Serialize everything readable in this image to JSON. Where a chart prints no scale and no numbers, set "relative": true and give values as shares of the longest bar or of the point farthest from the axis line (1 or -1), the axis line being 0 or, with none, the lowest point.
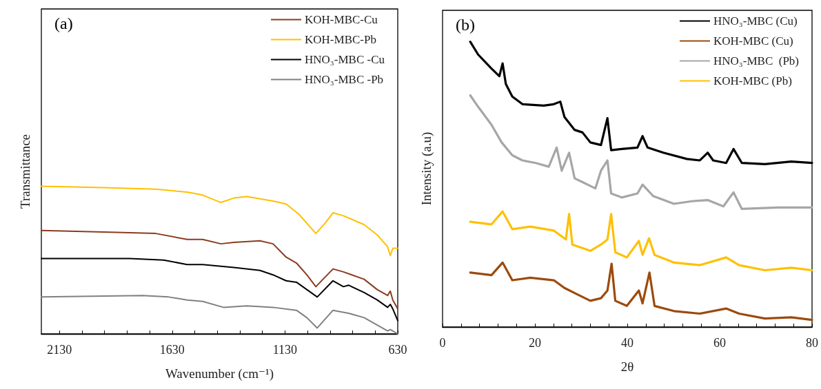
{
  "chart_data": [
    {
      "type": "line",
      "title": "(a)",
      "xlabel": "Wavenumber (cm⁻¹)",
      "ylabel": "Transmittance",
      "relative": true,
      "legend": "top right",
      "marker": "none",
      "line_style": "solid",
      "xlim": [
        2210,
        630
      ],
      "xticks": [
        2130,
        {
          "value": 2030,
          "label": null
        },
        {
          "value": 1930,
          "label": null
        },
        {
          "value": 1830,
          "label": null
        },
        {
          "value": 1730,
          "label": null
        },
        1630,
        {
          "value": 1530,
          "label": null
        },
        {
          "value": 1430,
          "label": null
        },
        {
          "value": 1330,
          "label": null
        },
        {
          "value": 1230,
          "label": null
        },
        1130,
        {
          "value": 1030,
          "label": null
        },
        {
          "value": 930,
          "label": null
        },
        {
          "value": 830,
          "label": null
        },
        {
          "value": 730,
          "label": null
        },
        630
      ],
      "series": [
        {
          "name": "KOH-MBC-Cu",
          "color": "#8b3a1e",
          "x": [
            2210,
            1934,
            1703,
            1564,
            1495,
            1414,
            1356,
            1241,
            1183,
            1125,
            1079,
            1033,
            993,
            917,
            871,
            779,
            721,
            675,
            663,
            652,
            630
          ],
          "values": [
            0.7,
            0.69,
            0.68,
            0.64,
            0.64,
            0.61,
            0.62,
            0.63,
            0.61,
            0.52,
            0.48,
            0.4,
            0.32,
            0.44,
            0.42,
            0.37,
            0.3,
            0.26,
            0.29,
            0.23,
            0.17
          ]
        },
        {
          "name": "KOH-MBC-Pb",
          "color": "#ffc000",
          "x": [
            2210,
            1934,
            1703,
            1564,
            1495,
            1414,
            1356,
            1299,
            1183,
            1125,
            1068,
            993,
            952,
            917,
            871,
            779,
            721,
            675,
            663,
            652,
            630
          ],
          "values": [
            1.0,
            0.99,
            0.98,
            0.96,
            0.94,
            0.89,
            0.92,
            0.93,
            0.9,
            0.88,
            0.81,
            0.68,
            0.75,
            0.82,
            0.8,
            0.74,
            0.67,
            0.59,
            0.53,
            0.58,
            0.58
          ]
        },
        {
          "name": "HNO₃-MBC -Cu",
          "color": "#000000",
          "x": [
            2210,
            1818,
            1668,
            1564,
            1495,
            1356,
            1241,
            1183,
            1125,
            1079,
            1033,
            987,
            917,
            871,
            848,
            779,
            721,
            675,
            663,
            652,
            630
          ],
          "values": [
            0.51,
            0.51,
            0.5,
            0.47,
            0.47,
            0.45,
            0.43,
            0.4,
            0.36,
            0.35,
            0.3,
            0.25,
            0.36,
            0.32,
            0.33,
            0.28,
            0.23,
            0.18,
            0.2,
            0.17,
            0.09
          ]
        },
        {
          "name": "HNO₃-MBC -Pb",
          "color": "#808080",
          "x": [
            2210,
            1761,
            1645,
            1564,
            1495,
            1403,
            1299,
            1183,
            1079,
            1033,
            987,
            917,
            848,
            779,
            721,
            675,
            663,
            630
          ],
          "values": [
            0.25,
            0.26,
            0.25,
            0.23,
            0.22,
            0.18,
            0.19,
            0.18,
            0.16,
            0.11,
            0.04,
            0.16,
            0.14,
            0.11,
            0.06,
            0.02,
            0.03,
            0.0
          ]
        }
      ]
    },
    {
      "type": "line",
      "title": "(b)",
      "xlabel": "2θ",
      "ylabel": "Intensity (a.u)",
      "relative": true,
      "legend": "top right",
      "marker": "none",
      "line_style": "solid",
      "xlim": [
        0,
        80
      ],
      "xticks": [
        0,
        {
          "value": 4,
          "label": null
        },
        {
          "value": 8,
          "label": null
        },
        {
          "value": 12,
          "label": null
        },
        {
          "value": 16,
          "label": null
        },
        20,
        {
          "value": 24,
          "label": null
        },
        {
          "value": 28,
          "label": null
        },
        {
          "value": 32,
          "label": null
        },
        {
          "value": 36,
          "label": null
        },
        40,
        {
          "value": 44,
          "label": null
        },
        {
          "value": 48,
          "label": null
        },
        {
          "value": 52,
          "label": null
        },
        {
          "value": 56,
          "label": null
        },
        60,
        {
          "value": 64,
          "label": null
        },
        {
          "value": 68,
          "label": null
        },
        {
          "value": 72,
          "label": null
        },
        {
          "value": 76,
          "label": null
        },
        80
      ],
      "series": [
        {
          "name": "HNO₃-MBC (Cu)",
          "color": "#000000",
          "x": [
            6.0,
            7.7,
            10.6,
            12.3,
            13.0,
            13.7,
            15.1,
            17.3,
            21.9,
            24.1,
            25.5,
            26.4,
            28.6,
            30.3,
            32.0,
            34.3,
            35.7,
            36.5,
            38.8,
            42.2,
            43.3,
            44.4,
            47.8,
            52.9,
            55.7,
            57.4,
            58.6,
            61.4,
            63.0,
            64.8,
            69.8,
            75.5,
            80.0
          ],
          "values": [
            1.0,
            0.955,
            0.906,
            0.879,
            0.924,
            0.852,
            0.808,
            0.781,
            0.776,
            0.781,
            0.79,
            0.736,
            0.691,
            0.682,
            0.647,
            0.638,
            0.732,
            0.62,
            0.624,
            0.629,
            0.669,
            0.629,
            0.611,
            0.589,
            0.584,
            0.611,
            0.584,
            0.575,
            0.624,
            0.575,
            0.571,
            0.58,
            0.575
          ]
        },
        {
          "name": "KOH-MBC (Cu)",
          "color": "#9c4a0c",
          "x": [
            6.0,
            10.6,
            13.0,
            15.1,
            19.0,
            24.1,
            26.4,
            28.6,
            32.0,
            34.3,
            35.7,
            36.6,
            37.4,
            39.9,
            42.5,
            43.3,
            44.8,
            45.9,
            50.1,
            55.7,
            61.4,
            64.2,
            69.8,
            75.5,
            80.0
          ],
          "values": [
            0.191,
            0.182,
            0.226,
            0.164,
            0.173,
            0.164,
            0.137,
            0.119,
            0.092,
            0.101,
            0.128,
            0.222,
            0.092,
            0.074,
            0.128,
            0.083,
            0.191,
            0.074,
            0.056,
            0.047,
            0.065,
            0.047,
            0.03,
            0.034,
            0.025
          ]
        },
        {
          "name": "HNO₃-MBC  (Pb)",
          "color": "#a6a6a6",
          "x": [
            6.0,
            7.7,
            10.6,
            12.8,
            15.1,
            17.3,
            20.2,
            23.0,
            24.7,
            25.8,
            27.4,
            28.6,
            30.3,
            33.1,
            34.3,
            35.7,
            36.5,
            38.8,
            42.2,
            43.3,
            45.6,
            50.1,
            54.0,
            57.4,
            60.8,
            63.0,
            64.8,
            72.7,
            80.0
          ],
          "values": [
            0.812,
            0.772,
            0.709,
            0.647,
            0.602,
            0.584,
            0.575,
            0.562,
            0.629,
            0.548,
            0.611,
            0.521,
            0.508,
            0.486,
            0.548,
            0.584,
            0.468,
            0.454,
            0.468,
            0.499,
            0.459,
            0.432,
            0.441,
            0.445,
            0.423,
            0.472,
            0.414,
            0.419,
            0.419
          ]
        },
        {
          "name": "KOH-MBC (Pb)",
          "color": "#ffc000",
          "x": [
            6.0,
            10.6,
            13.0,
            15.1,
            19.0,
            24.1,
            26.7,
            27.4,
            28.1,
            32.0,
            34.3,
            35.7,
            36.5,
            37.4,
            39.9,
            42.5,
            43.3,
            44.7,
            45.9,
            50.1,
            55.7,
            61.4,
            64.2,
            69.8,
            75.5,
            80.0
          ],
          "values": [
            0.369,
            0.36,
            0.405,
            0.343,
            0.352,
            0.338,
            0.307,
            0.396,
            0.289,
            0.267,
            0.289,
            0.307,
            0.396,
            0.262,
            0.244,
            0.302,
            0.253,
            0.311,
            0.253,
            0.226,
            0.217,
            0.244,
            0.217,
            0.199,
            0.208,
            0.199
          ]
        }
      ]
    }
  ]
}
